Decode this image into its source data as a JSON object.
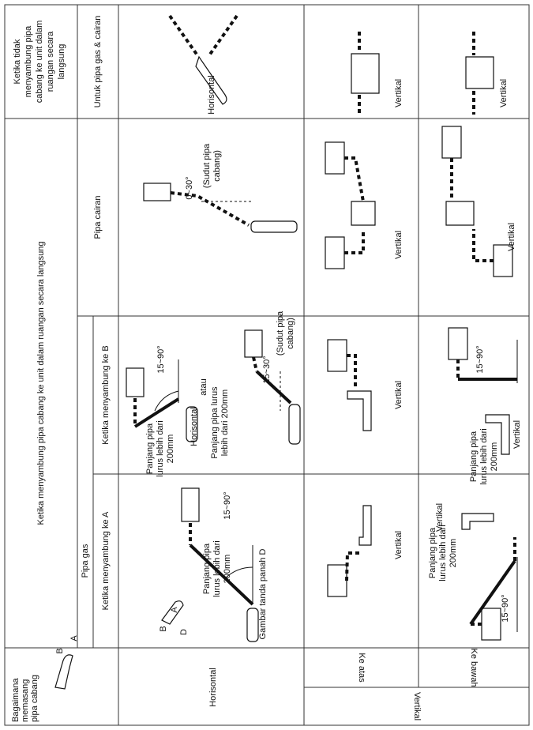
{
  "header": {
    "row_label": [
      "Bagaimana",
      "memasang",
      "pipa cabang"
    ],
    "direct": "Ketika menyambung pipa cabang ke unit dalam ruangan secara langsung",
    "gas": "Pipa gas",
    "gas_a": "Ketika menyambung ke A",
    "gas_b": "Ketika menyambung ke B",
    "liquid": "Pipa cairan",
    "indirect": [
      "Ketika tidak",
      "menyambung pipa",
      "cabang ke unit dalam",
      "ruangan secara",
      "langsung"
    ],
    "both": "Untuk pipa gas & cairan"
  },
  "rows": {
    "horizontal": "Horisontal",
    "vertical": "Vertikal",
    "up": "Ke atas",
    "down": "Ke bawah"
  },
  "annotations": [
    [
      "B"
    ],
    [
      "A"
    ],
    [
      "B"
    ],
    [
      "A"
    ],
    [
      "D"
    ],
    [
      "Panjang pipa",
      "lurus lebih dari",
      "200mm"
    ],
    [
      "15~90°"
    ],
    [
      "Gambar tanda panah D"
    ],
    [
      "Panjang pipa",
      "lurus lebih dari",
      "200mm"
    ],
    [
      "15~90°"
    ],
    [
      "Horisontal"
    ],
    [
      "atau"
    ],
    [
      "Panjang pipa lurus",
      "lebih dari 200mm"
    ],
    [
      "15~30°"
    ],
    [
      "(Sudut pipa",
      "cabang)"
    ],
    [
      "0~30°"
    ],
    [
      "(Sudut pipa",
      "cabang)"
    ],
    [
      "Horisontal"
    ],
    [
      "Vertikal"
    ],
    [
      "Vertikal"
    ],
    [
      "Vertikal"
    ],
    [
      "Vertikal"
    ],
    [
      "Panjang pipa",
      "lurus lebih dari",
      "200mm"
    ],
    [
      "Vertikal"
    ],
    [
      "15~90°"
    ],
    [
      "Panjang pipa",
      "lurus lebih dari",
      "200mm"
    ],
    [
      "15~90°"
    ],
    [
      "Vertikal"
    ],
    [
      "Vertikal"
    ],
    [
      "Vertikal"
    ]
  ]
}
